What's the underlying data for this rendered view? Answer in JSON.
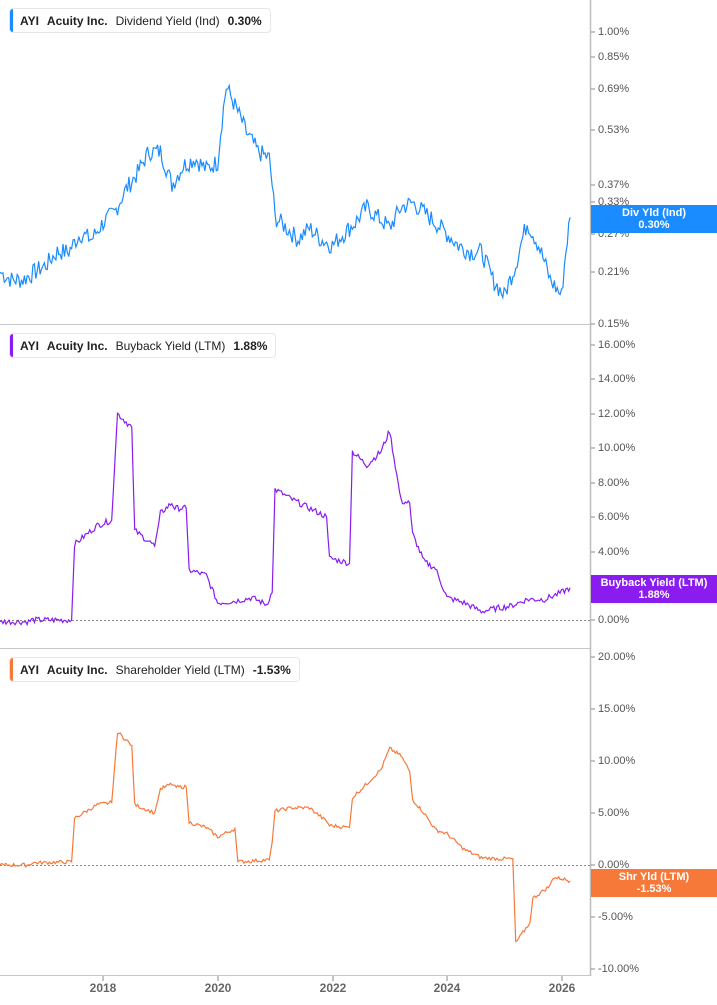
{
  "panels": [
    {
      "id": "dividend",
      "legend": {
        "ticker": "AYI",
        "company": "Acuity Inc.",
        "metric": "Dividend Yield (Ind)",
        "value": "0.30%"
      },
      "flag": {
        "label": "Div Yld (Ind)",
        "value": "0.30%"
      },
      "color": "#1a8cff",
      "y_ticks": [
        "1.00%",
        "0.85%",
        "0.69%",
        "0.53%",
        "0.37%",
        "0.33%",
        "0.27%",
        "0.21%",
        "0.15%"
      ]
    },
    {
      "id": "buyback",
      "legend": {
        "ticker": "AYI",
        "company": "Acuity Inc.",
        "metric": "Buyback Yield (LTM)",
        "value": "1.88%"
      },
      "flag": {
        "label": "Buyback Yield (LTM)",
        "value": "1.88%"
      },
      "color": "#8a1cf0",
      "y_ticks": [
        "16.00%",
        "14.00%",
        "12.00%",
        "10.00%",
        "8.00%",
        "6.00%",
        "4.00%",
        "2.00%",
        "0.00%"
      ]
    },
    {
      "id": "shareholder",
      "legend": {
        "ticker": "AYI",
        "company": "Acuity Inc.",
        "metric": "Shareholder Yield (LTM)",
        "value": "-1.53%"
      },
      "flag": {
        "label": "Shr Yld (LTM)",
        "value": "-1.53%"
      },
      "color": "#f7793a",
      "y_ticks": [
        "20.00%",
        "15.00%",
        "10.00%",
        "5.00%",
        "0.00%",
        "-5.00%",
        "-10.00%"
      ]
    }
  ],
  "x_axis": {
    "ticks": [
      "2018",
      "2020",
      "2022",
      "2024",
      "2026"
    ]
  },
  "chart_data": [
    {
      "type": "line",
      "title": "AYI Acuity Inc. Dividend Yield (Ind)",
      "ylabel": "Dividend Yield (Ind)",
      "yscale": "log",
      "ylim": [
        0.15,
        1.1
      ],
      "y_ticks": [
        1.0,
        0.85,
        0.69,
        0.53,
        0.37,
        0.33,
        0.27,
        0.21,
        0.15
      ],
      "x_ticks": [
        "2018",
        "2020",
        "2022",
        "2024",
        "2026"
      ],
      "last_value": 0.3,
      "series": [
        {
          "name": "Dividend Yield (Ind) %",
          "x": [
            2016.2,
            2016.4,
            2016.6,
            2016.8,
            2017.0,
            2017.2,
            2017.4,
            2017.6,
            2017.8,
            2018.0,
            2018.2,
            2018.4,
            2018.6,
            2018.8,
            2019.0,
            2019.2,
            2019.4,
            2019.6,
            2019.8,
            2020.0,
            2020.15,
            2020.3,
            2020.5,
            2020.7,
            2020.9,
            2021.0,
            2021.2,
            2021.4,
            2021.6,
            2021.8,
            2022.0,
            2022.2,
            2022.4,
            2022.6,
            2022.8,
            2023.0,
            2023.2,
            2023.4,
            2023.6,
            2023.8,
            2024.0,
            2024.2,
            2024.4,
            2024.6,
            2024.8,
            2025.0,
            2025.2,
            2025.4,
            2025.6,
            2025.8,
            2026.0,
            2026.15
          ],
          "values": [
            0.21,
            0.2,
            0.2,
            0.21,
            0.22,
            0.24,
            0.24,
            0.27,
            0.26,
            0.29,
            0.31,
            0.36,
            0.4,
            0.46,
            0.46,
            0.37,
            0.42,
            0.44,
            0.41,
            0.43,
            0.7,
            0.62,
            0.52,
            0.46,
            0.44,
            0.3,
            0.28,
            0.26,
            0.28,
            0.26,
            0.25,
            0.27,
            0.29,
            0.32,
            0.3,
            0.28,
            0.32,
            0.33,
            0.31,
            0.29,
            0.27,
            0.25,
            0.24,
            0.24,
            0.2,
            0.18,
            0.22,
            0.29,
            0.25,
            0.2,
            0.18,
            0.3
          ]
        }
      ]
    },
    {
      "type": "line",
      "title": "AYI Acuity Inc. Buyback Yield (LTM)",
      "ylabel": "Buyback Yield (LTM)",
      "ylim": [
        -0.5,
        17
      ],
      "y_ticks": [
        16,
        14,
        12,
        10,
        8,
        6,
        4,
        2,
        0
      ],
      "x_ticks": [
        "2018",
        "2020",
        "2022",
        "2024",
        "2026"
      ],
      "last_value": 1.88,
      "series": [
        {
          "name": "Buyback Yield (LTM) %",
          "x": [
            2016.2,
            2016.7,
            2016.75,
            2017.45,
            2017.5,
            2017.9,
            2018.15,
            2018.25,
            2018.5,
            2018.55,
            2018.9,
            2019.0,
            2019.2,
            2019.25,
            2019.45,
            2019.5,
            2019.8,
            2020.0,
            2020.3,
            2020.6,
            2020.85,
            2020.95,
            2021.0,
            2021.3,
            2021.6,
            2021.9,
            2021.95,
            2022.3,
            2022.35,
            2022.6,
            2022.85,
            2023.0,
            2023.2,
            2023.35,
            2023.4,
            2023.6,
            2023.8,
            2024.0,
            2024.3,
            2024.6,
            2024.9,
            2025.1,
            2025.4,
            2025.7,
            2026.0,
            2026.15
          ],
          "values": [
            -0.1,
            -0.1,
            0.0,
            0.0,
            4.4,
            5.5,
            5.8,
            12.0,
            11.2,
            5.2,
            4.3,
            6.2,
            6.8,
            6.5,
            6.5,
            2.9,
            2.6,
            1.0,
            1.1,
            1.3,
            0.9,
            1.6,
            7.6,
            7.0,
            6.5,
            6.0,
            3.6,
            3.3,
            9.8,
            9.0,
            9.8,
            11.0,
            6.9,
            6.8,
            5.0,
            3.4,
            3.0,
            1.3,
            1.0,
            0.5,
            0.7,
            0.8,
            1.2,
            1.2,
            1.6,
            1.88
          ]
        }
      ]
    },
    {
      "type": "line",
      "title": "AYI Acuity Inc. Shareholder Yield (LTM)",
      "ylabel": "Shareholder Yield (LTM)",
      "ylim": [
        -10.5,
        21
      ],
      "y_ticks": [
        20,
        15,
        10,
        5,
        0,
        -5,
        -10
      ],
      "x_ticks": [
        "2018",
        "2020",
        "2022",
        "2024",
        "2026"
      ],
      "last_value": -1.53,
      "series": [
        {
          "name": "Shareholder Yield (LTM) %",
          "x": [
            2016.2,
            2016.7,
            2016.75,
            2017.45,
            2017.5,
            2017.9,
            2018.15,
            2018.25,
            2018.5,
            2018.55,
            2018.9,
            2019.0,
            2019.2,
            2019.25,
            2019.45,
            2019.5,
            2019.8,
            2020.0,
            2020.3,
            2020.35,
            2020.9,
            2020.95,
            2021.0,
            2021.3,
            2021.6,
            2021.9,
            2021.95,
            2022.3,
            2022.35,
            2022.6,
            2022.85,
            2023.0,
            2023.2,
            2023.35,
            2023.4,
            2023.6,
            2023.8,
            2024.0,
            2024.3,
            2024.6,
            2024.9,
            2025.15,
            2025.2,
            2025.45,
            2025.5,
            2025.8,
            2025.85,
            2026.0,
            2026.15
          ],
          "values": [
            0.0,
            0.0,
            0.2,
            0.3,
            4.5,
            5.8,
            6.0,
            12.8,
            11.5,
            5.8,
            5.0,
            7.3,
            7.8,
            7.5,
            7.5,
            4.1,
            3.6,
            2.7,
            3.5,
            0.3,
            0.5,
            2.2,
            5.2,
            5.5,
            5.5,
            4.2,
            3.8,
            3.6,
            6.5,
            7.8,
            9.2,
            11.2,
            10.5,
            9.0,
            6.3,
            5.0,
            3.4,
            3.0,
            1.5,
            0.7,
            0.6,
            0.6,
            -7.5,
            -5.5,
            -3.2,
            -2.0,
            -1.2,
            -1.3,
            -1.53
          ]
        }
      ]
    }
  ]
}
